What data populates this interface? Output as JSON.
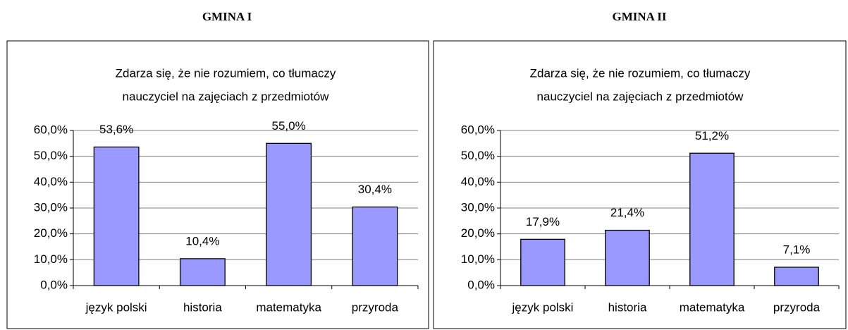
{
  "chart_data": [
    {
      "type": "bar",
      "heading": "GMINA I",
      "title": [
        "Zdarza się, że nie rozumiem, co tłumaczy",
        "nauczyciel na zajęciach z przedmiotów"
      ],
      "categories": [
        "język polski",
        "historia",
        "matematyka",
        "przyroda"
      ],
      "values": [
        53.6,
        10.4,
        55.0,
        30.4
      ],
      "value_labels": [
        "53,6%",
        "10,4%",
        "55,0%",
        "30,4%"
      ],
      "color": "#9999ff",
      "grid": true,
      "ylim": [
        0,
        60
      ],
      "yticks": [
        {
          "value": 0,
          "label": "0,0%"
        },
        {
          "value": 10,
          "label": "10,0%"
        },
        {
          "value": 20,
          "label": "20,0%"
        },
        {
          "value": 30,
          "label": "30,0%"
        },
        {
          "value": 40,
          "label": "40,0%"
        },
        {
          "value": 50,
          "label": "50,0%"
        },
        {
          "value": 60,
          "label": "60,0%"
        }
      ]
    },
    {
      "type": "bar",
      "heading": "GMINA II",
      "title": [
        "Zdarza się, że nie rozumiem, co tłumaczy",
        "nauczyciel na zajęciach z przedmiotów"
      ],
      "categories": [
        "język polski",
        "historia",
        "matematyka",
        "przyroda"
      ],
      "values": [
        17.9,
        21.4,
        51.2,
        7.1
      ],
      "value_labels": [
        "17,9%",
        "21,4%",
        "51,2%",
        "7,1%"
      ],
      "color": "#9999ff",
      "grid": true,
      "ylim": [
        0,
        60
      ],
      "yticks": [
        {
          "value": 0,
          "label": "0,0%"
        },
        {
          "value": 10,
          "label": "10,0%"
        },
        {
          "value": 20,
          "label": "20,0%"
        },
        {
          "value": 30,
          "label": "30,0%"
        },
        {
          "value": 40,
          "label": "40,0%"
        },
        {
          "value": 50,
          "label": "50,0%"
        },
        {
          "value": 60,
          "label": "60,0%"
        }
      ]
    }
  ]
}
